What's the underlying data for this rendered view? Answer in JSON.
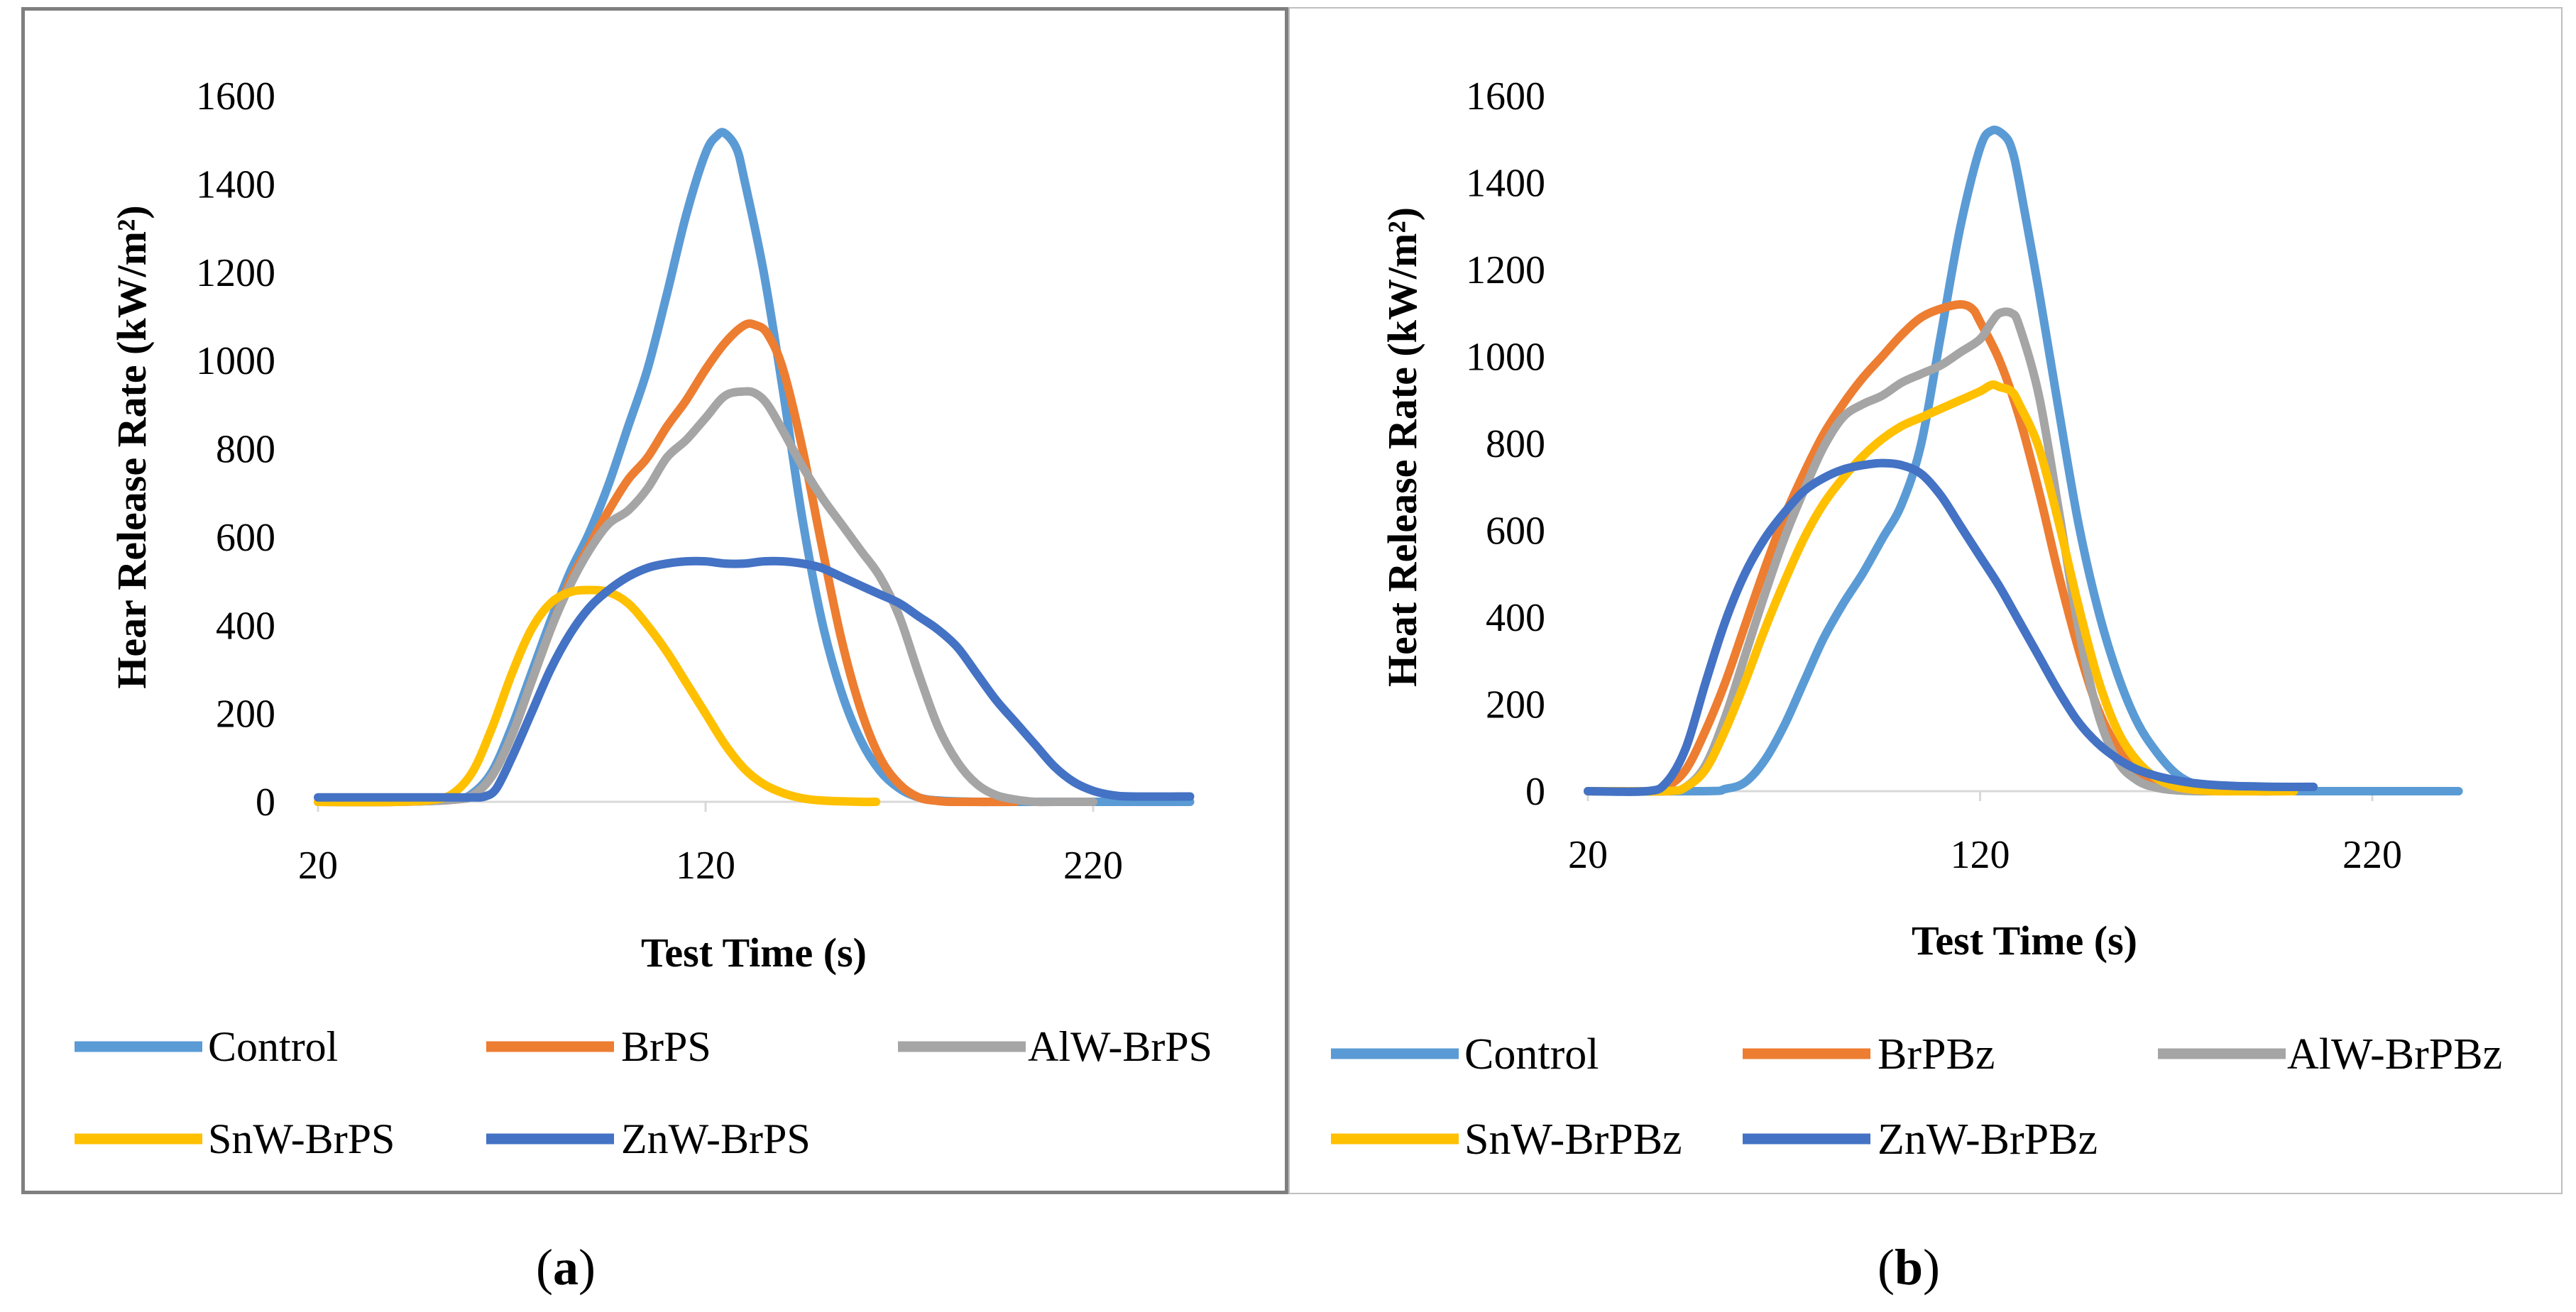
{
  "panels": [
    {
      "id": "a",
      "label": "a",
      "chart_data": {
        "type": "line",
        "title": "",
        "xlabel": "Test Time (s)",
        "ylabel": "Hear Release Rate (kW/m²)",
        "xlim": [
          20,
          245
        ],
        "ylim": [
          0,
          1600
        ],
        "x_ticks": [
          20,
          120,
          220
        ],
        "y_ticks": [
          0,
          200,
          400,
          600,
          800,
          1000,
          1200,
          1400,
          1600
        ],
        "x_tick_labels": [
          "20",
          "120",
          "220"
        ],
        "y_tick_labels": [
          "0",
          "200",
          "400",
          "600",
          "800",
          "1000",
          "1200",
          "1400",
          "1600"
        ],
        "grid": false,
        "legend_position": "bottom",
        "series": [
          {
            "name": "Control",
            "color": "#5b9bd5",
            "x": [
              20,
              40,
              55,
              60,
              65,
              70,
              75,
              80,
              85,
              90,
              95,
              100,
              105,
              110,
              115,
              120,
              123,
              125,
              128,
              130,
              135,
              140,
              145,
              150,
              155,
              160,
              165,
              170,
              175,
              180,
              190,
              200,
              245
            ],
            "y": [
              0,
              0,
              5,
              20,
              70,
              170,
              290,
              410,
              520,
              610,
              720,
              850,
              980,
              1150,
              1330,
              1470,
              1510,
              1515,
              1480,
              1410,
              1200,
              930,
              640,
              410,
              250,
              140,
              70,
              30,
              10,
              3,
              0,
              0,
              0
            ]
          },
          {
            "name": "BrPS",
            "color": "#ed7d31",
            "x": [
              20,
              40,
              55,
              60,
              65,
              70,
              75,
              80,
              85,
              90,
              95,
              100,
              105,
              110,
              115,
              120,
              125,
              130,
              133,
              136,
              140,
              145,
              150,
              155,
              160,
              165,
              170,
              175,
              180,
              185,
              200
            ],
            "y": [
              0,
              0,
              5,
              15,
              60,
              150,
              270,
              390,
              500,
              580,
              660,
              730,
              780,
              850,
              910,
              980,
              1040,
              1080,
              1080,
              1060,
              980,
              800,
              580,
              370,
              210,
              100,
              40,
              10,
              2,
              0,
              0
            ]
          },
          {
            "name": "AlW-BrPS",
            "color": "#a5a5a5",
            "x": [
              20,
              40,
              55,
              60,
              65,
              70,
              75,
              80,
              85,
              90,
              95,
              100,
              105,
              110,
              115,
              120,
              125,
              130,
              133,
              136,
              140,
              145,
              150,
              155,
              160,
              165,
              170,
              175,
              180,
              185,
              190,
              195,
              200,
              205,
              210,
              220
            ],
            "y": [
              0,
              0,
              5,
              15,
              60,
              150,
              270,
              390,
              490,
              570,
              630,
              660,
              710,
              780,
              820,
              870,
              920,
              930,
              925,
              900,
              840,
              760,
              690,
              630,
              570,
              510,
              420,
              290,
              170,
              90,
              40,
              15,
              5,
              0,
              0,
              0
            ]
          },
          {
            "name": "SnW-BrPS",
            "color": "#ffc000",
            "x": [
              20,
              40,
              50,
              55,
              60,
              65,
              70,
              75,
              80,
              85,
              90,
              95,
              100,
              105,
              110,
              115,
              120,
              125,
              130,
              135,
              140,
              145,
              150,
              160,
              164
            ],
            "y": [
              0,
              0,
              5,
              20,
              70,
              170,
              290,
              390,
              450,
              475,
              480,
              475,
              450,
              400,
              340,
              270,
              200,
              130,
              75,
              40,
              20,
              8,
              3,
              0,
              0
            ]
          },
          {
            "name": "ZnW-BrPS",
            "color": "#4472c4",
            "x": [
              20,
              45,
              55,
              60,
              63,
              66,
              70,
              75,
              80,
              85,
              90,
              95,
              100,
              105,
              110,
              115,
              120,
              125,
              130,
              135,
              140,
              145,
              150,
              155,
              160,
              165,
              170,
              175,
              180,
              185,
              190,
              195,
              200,
              205,
              210,
              215,
              220,
              225,
              230,
              245
            ],
            "y": [
              10,
              10,
              10,
              10,
              12,
              30,
              100,
              200,
              300,
              380,
              440,
              480,
              510,
              530,
              540,
              545,
              545,
              540,
              540,
              545,
              545,
              540,
              530,
              510,
              490,
              470,
              450,
              420,
              390,
              350,
              290,
              230,
              180,
              130,
              80,
              45,
              25,
              15,
              12,
              12
            ]
          }
        ]
      }
    },
    {
      "id": "b",
      "label": "b",
      "chart_data": {
        "type": "line",
        "title": "",
        "xlabel": "Test Time (s)",
        "ylabel": "Heat Release Rate (kW/m²)",
        "xlim": [
          20,
          245
        ],
        "ylim": [
          0,
          1600
        ],
        "x_ticks": [
          20,
          120,
          220
        ],
        "y_ticks": [
          0,
          200,
          400,
          600,
          800,
          1000,
          1200,
          1400,
          1600
        ],
        "x_tick_labels": [
          "20",
          "120",
          "220"
        ],
        "y_tick_labels": [
          "0",
          "200",
          "400",
          "600",
          "800",
          "1000",
          "1200",
          "1400",
          "1600"
        ],
        "grid": false,
        "legend_position": "bottom",
        "series": [
          {
            "name": "Control",
            "color": "#5b9bd5",
            "x": [
              20,
              50,
              55,
              60,
              65,
              70,
              75,
              80,
              85,
              90,
              95,
              100,
              105,
              110,
              115,
              120,
              123,
              126,
              128,
              130,
              135,
              140,
              145,
              150,
              155,
              160,
              165,
              170,
              175,
              180,
              190,
              200,
              230,
              242
            ],
            "y": [
              0,
              0,
              5,
              20,
              70,
              150,
              250,
              350,
              430,
              500,
              580,
              660,
              800,
              1050,
              1300,
              1480,
              1520,
              1510,
              1480,
              1400,
              1150,
              880,
              620,
              420,
              270,
              160,
              90,
              40,
              15,
              5,
              0,
              0,
              0,
              0
            ]
          },
          {
            "name": "BrPBz",
            "color": "#ed7d31",
            "x": [
              20,
              35,
              40,
              45,
              50,
              55,
              60,
              65,
              70,
              75,
              80,
              85,
              90,
              95,
              100,
              105,
              110,
              115,
              118,
              120,
              125,
              130,
              135,
              140,
              145,
              150,
              155,
              160,
              165,
              170,
              175,
              180,
              200
            ],
            "y": [
              0,
              0,
              10,
              50,
              140,
              250,
              380,
              510,
              630,
              730,
              820,
              890,
              950,
              1000,
              1050,
              1090,
              1110,
              1120,
              1110,
              1080,
              990,
              860,
              690,
              500,
              330,
              190,
              100,
              45,
              15,
              5,
              2,
              0,
              0
            ]
          },
          {
            "name": "AlW-BrPBz",
            "color": "#a5a5a5",
            "x": [
              20,
              40,
              45,
              50,
              55,
              60,
              65,
              70,
              75,
              80,
              85,
              90,
              95,
              100,
              105,
              110,
              115,
              120,
              123,
              125,
              128,
              130,
              135,
              140,
              145,
              150,
              155,
              160,
              165,
              170,
              175,
              180,
              200
            ],
            "y": [
              0,
              0,
              10,
              60,
              170,
              310,
              450,
              580,
              690,
              790,
              860,
              890,
              910,
              940,
              960,
              980,
              1010,
              1040,
              1080,
              1100,
              1100,
              1070,
              910,
              650,
              380,
              180,
              70,
              25,
              8,
              2,
              0,
              0,
              0
            ]
          },
          {
            "name": "SnW-BrPBz",
            "color": "#ffc000",
            "x": [
              20,
              40,
              45,
              50,
              55,
              60,
              65,
              70,
              75,
              80,
              85,
              90,
              95,
              100,
              105,
              110,
              115,
              120,
              123,
              125,
              128,
              130,
              135,
              140,
              145,
              150,
              155,
              160,
              165,
              170,
              175,
              180,
              185,
              190,
              200
            ],
            "y": [
              0,
              0,
              10,
              50,
              140,
              250,
              370,
              480,
              580,
              660,
              720,
              770,
              810,
              840,
              860,
              880,
              900,
              920,
              935,
              930,
              920,
              890,
              790,
              620,
              430,
              260,
              140,
              70,
              30,
              10,
              3,
              0,
              0,
              0,
              0
            ]
          },
          {
            "name": "ZnW-BrPBz",
            "color": "#4472c4",
            "x": [
              20,
              35,
              40,
              45,
              50,
              55,
              60,
              65,
              70,
              75,
              80,
              85,
              90,
              95,
              100,
              105,
              110,
              115,
              120,
              125,
              130,
              135,
              140,
              145,
              150,
              155,
              160,
              165,
              170,
              175,
              180,
              185,
              190,
              195,
              205
            ],
            "y": [
              0,
              0,
              20,
              100,
              250,
              390,
              500,
              580,
              640,
              690,
              720,
              740,
              750,
              755,
              750,
              730,
              680,
              610,
              540,
              470,
              390,
              310,
              230,
              160,
              110,
              75,
              50,
              35,
              25,
              18,
              14,
              12,
              11,
              10,
              10
            ]
          }
        ]
      }
    }
  ],
  "legends": [
    {
      "rows": [
        [
          "Control",
          "BrPS",
          "AlW-BrPS"
        ],
        [
          "SnW-BrPS",
          "ZnW-BrPS"
        ]
      ]
    },
    {
      "rows": [
        [
          "Control",
          "BrPBz",
          "AlW-BrPBz"
        ],
        [
          "SnW-BrPBz",
          "ZnW-BrPBz"
        ]
      ]
    }
  ]
}
